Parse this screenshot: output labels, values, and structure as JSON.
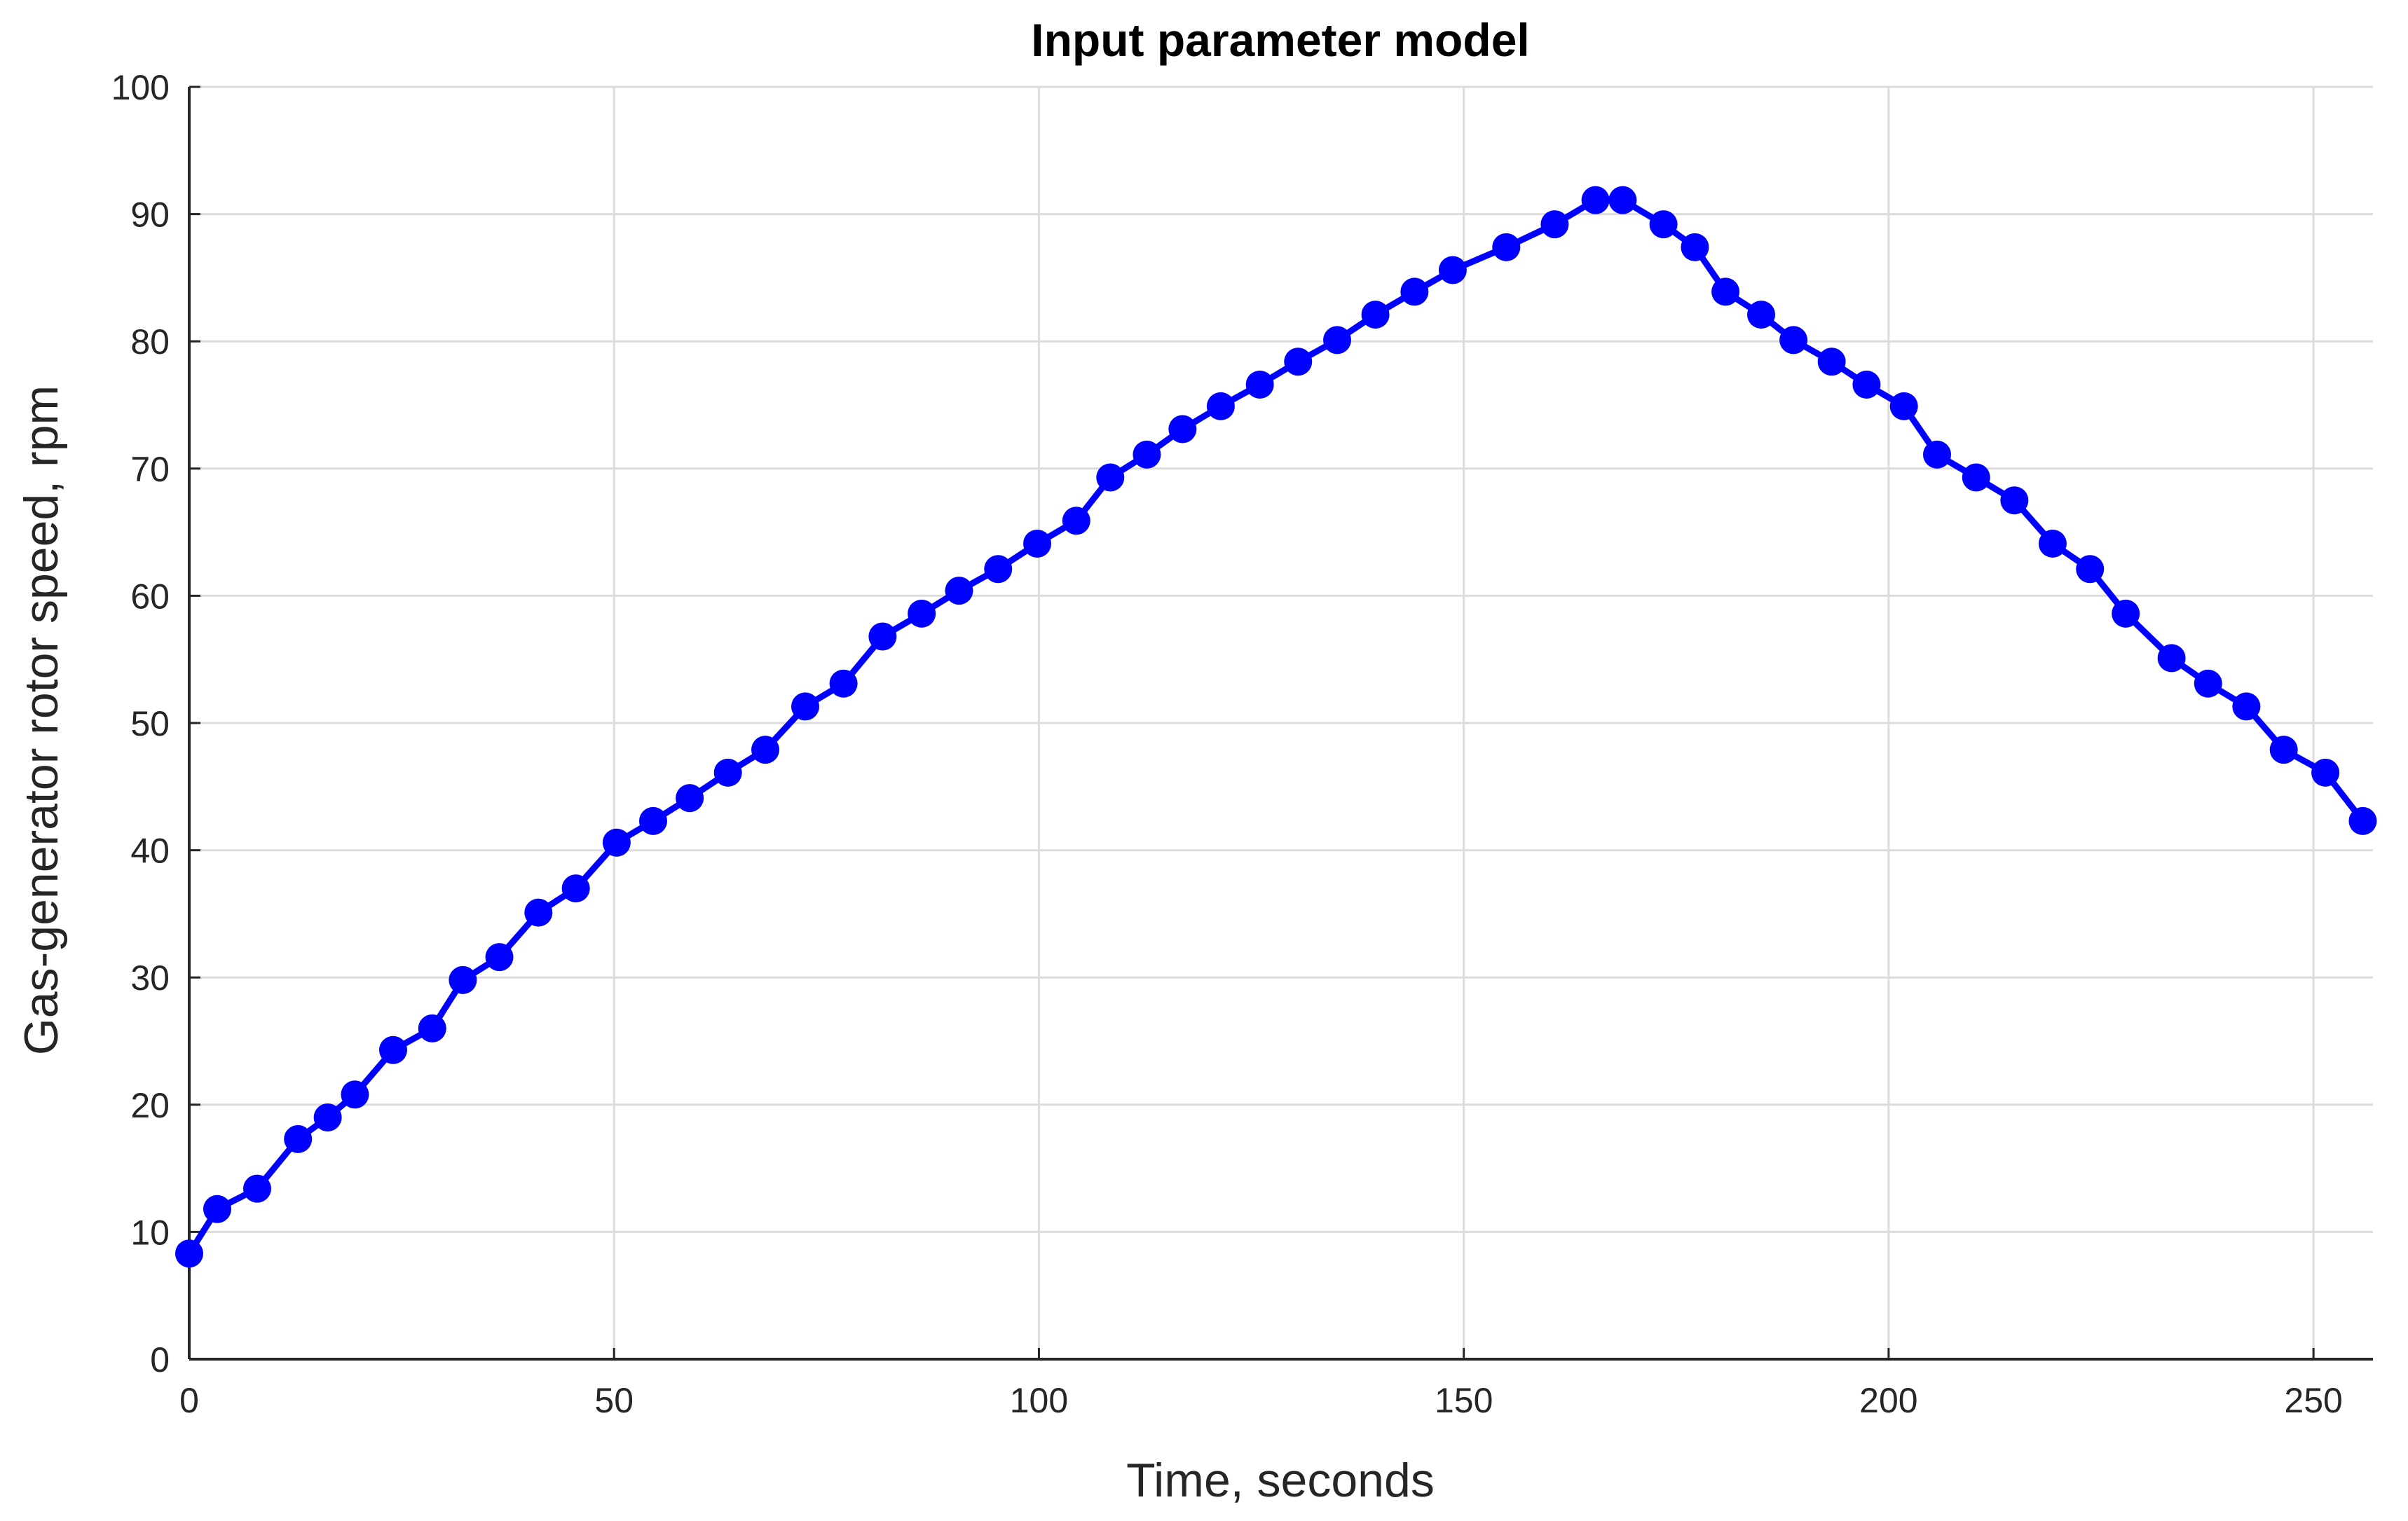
{
  "chart_data": {
    "type": "line",
    "title": "Input parameter model",
    "xlabel": "Time, seconds",
    "ylabel": "Gas-generator rotor speed, rpm",
    "xlim": [
      0,
      257
    ],
    "ylim": [
      0,
      100
    ],
    "xticks": [
      "0",
      "50",
      "100",
      "150",
      "200",
      "250"
    ],
    "yticks": [
      "0",
      "10",
      "20",
      "30",
      "40",
      "50",
      "60",
      "70",
      "80",
      "90",
      "100"
    ],
    "grid": true,
    "legend": "none",
    "series": [
      {
        "color": "#0000ff",
        "marker": "circle",
        "x": [
          0,
          3.3,
          8,
          12.8,
          16.3,
          19.5,
          24,
          28.6,
          32.2,
          36.5,
          41.1,
          45.5,
          50.3,
          54.6,
          58.9,
          63.4,
          67.8,
          72.5,
          77,
          81.6,
          86.2,
          90.6,
          95.2,
          99.8,
          104.4,
          108.4,
          112.7,
          116.9,
          121.4,
          126,
          130.5,
          135.1,
          139.6,
          144.2,
          148.7,
          155,
          160.7,
          165.5,
          168.7,
          173.5,
          177.2,
          180.8,
          185,
          188.8,
          193.3,
          197.4,
          201.8,
          205.7,
          210.3,
          214.8,
          219.3,
          223.7,
          227.9,
          233.3,
          237.6,
          242.1,
          246.5,
          251.4,
          255.8
        ],
        "y": [
          8.3,
          11.8,
          13.4,
          17.3,
          19,
          20.8,
          24.3,
          26,
          29.8,
          31.6,
          35.1,
          37,
          40.6,
          42.3,
          44.1,
          46.1,
          47.9,
          51.3,
          53.1,
          56.8,
          58.6,
          60.4,
          62.1,
          64.1,
          65.9,
          69.3,
          71.1,
          73.1,
          74.9,
          76.6,
          78.4,
          80.1,
          82.1,
          83.9,
          85.6,
          87.4,
          89.2,
          91.1,
          91.1,
          89.2,
          87.4,
          83.9,
          82.1,
          80.1,
          78.4,
          76.6,
          74.9,
          71.1,
          69.3,
          67.5,
          64.1,
          62.1,
          58.6,
          55.1,
          53.1,
          51.3,
          47.9,
          46.1,
          42.3
        ]
      }
    ]
  }
}
